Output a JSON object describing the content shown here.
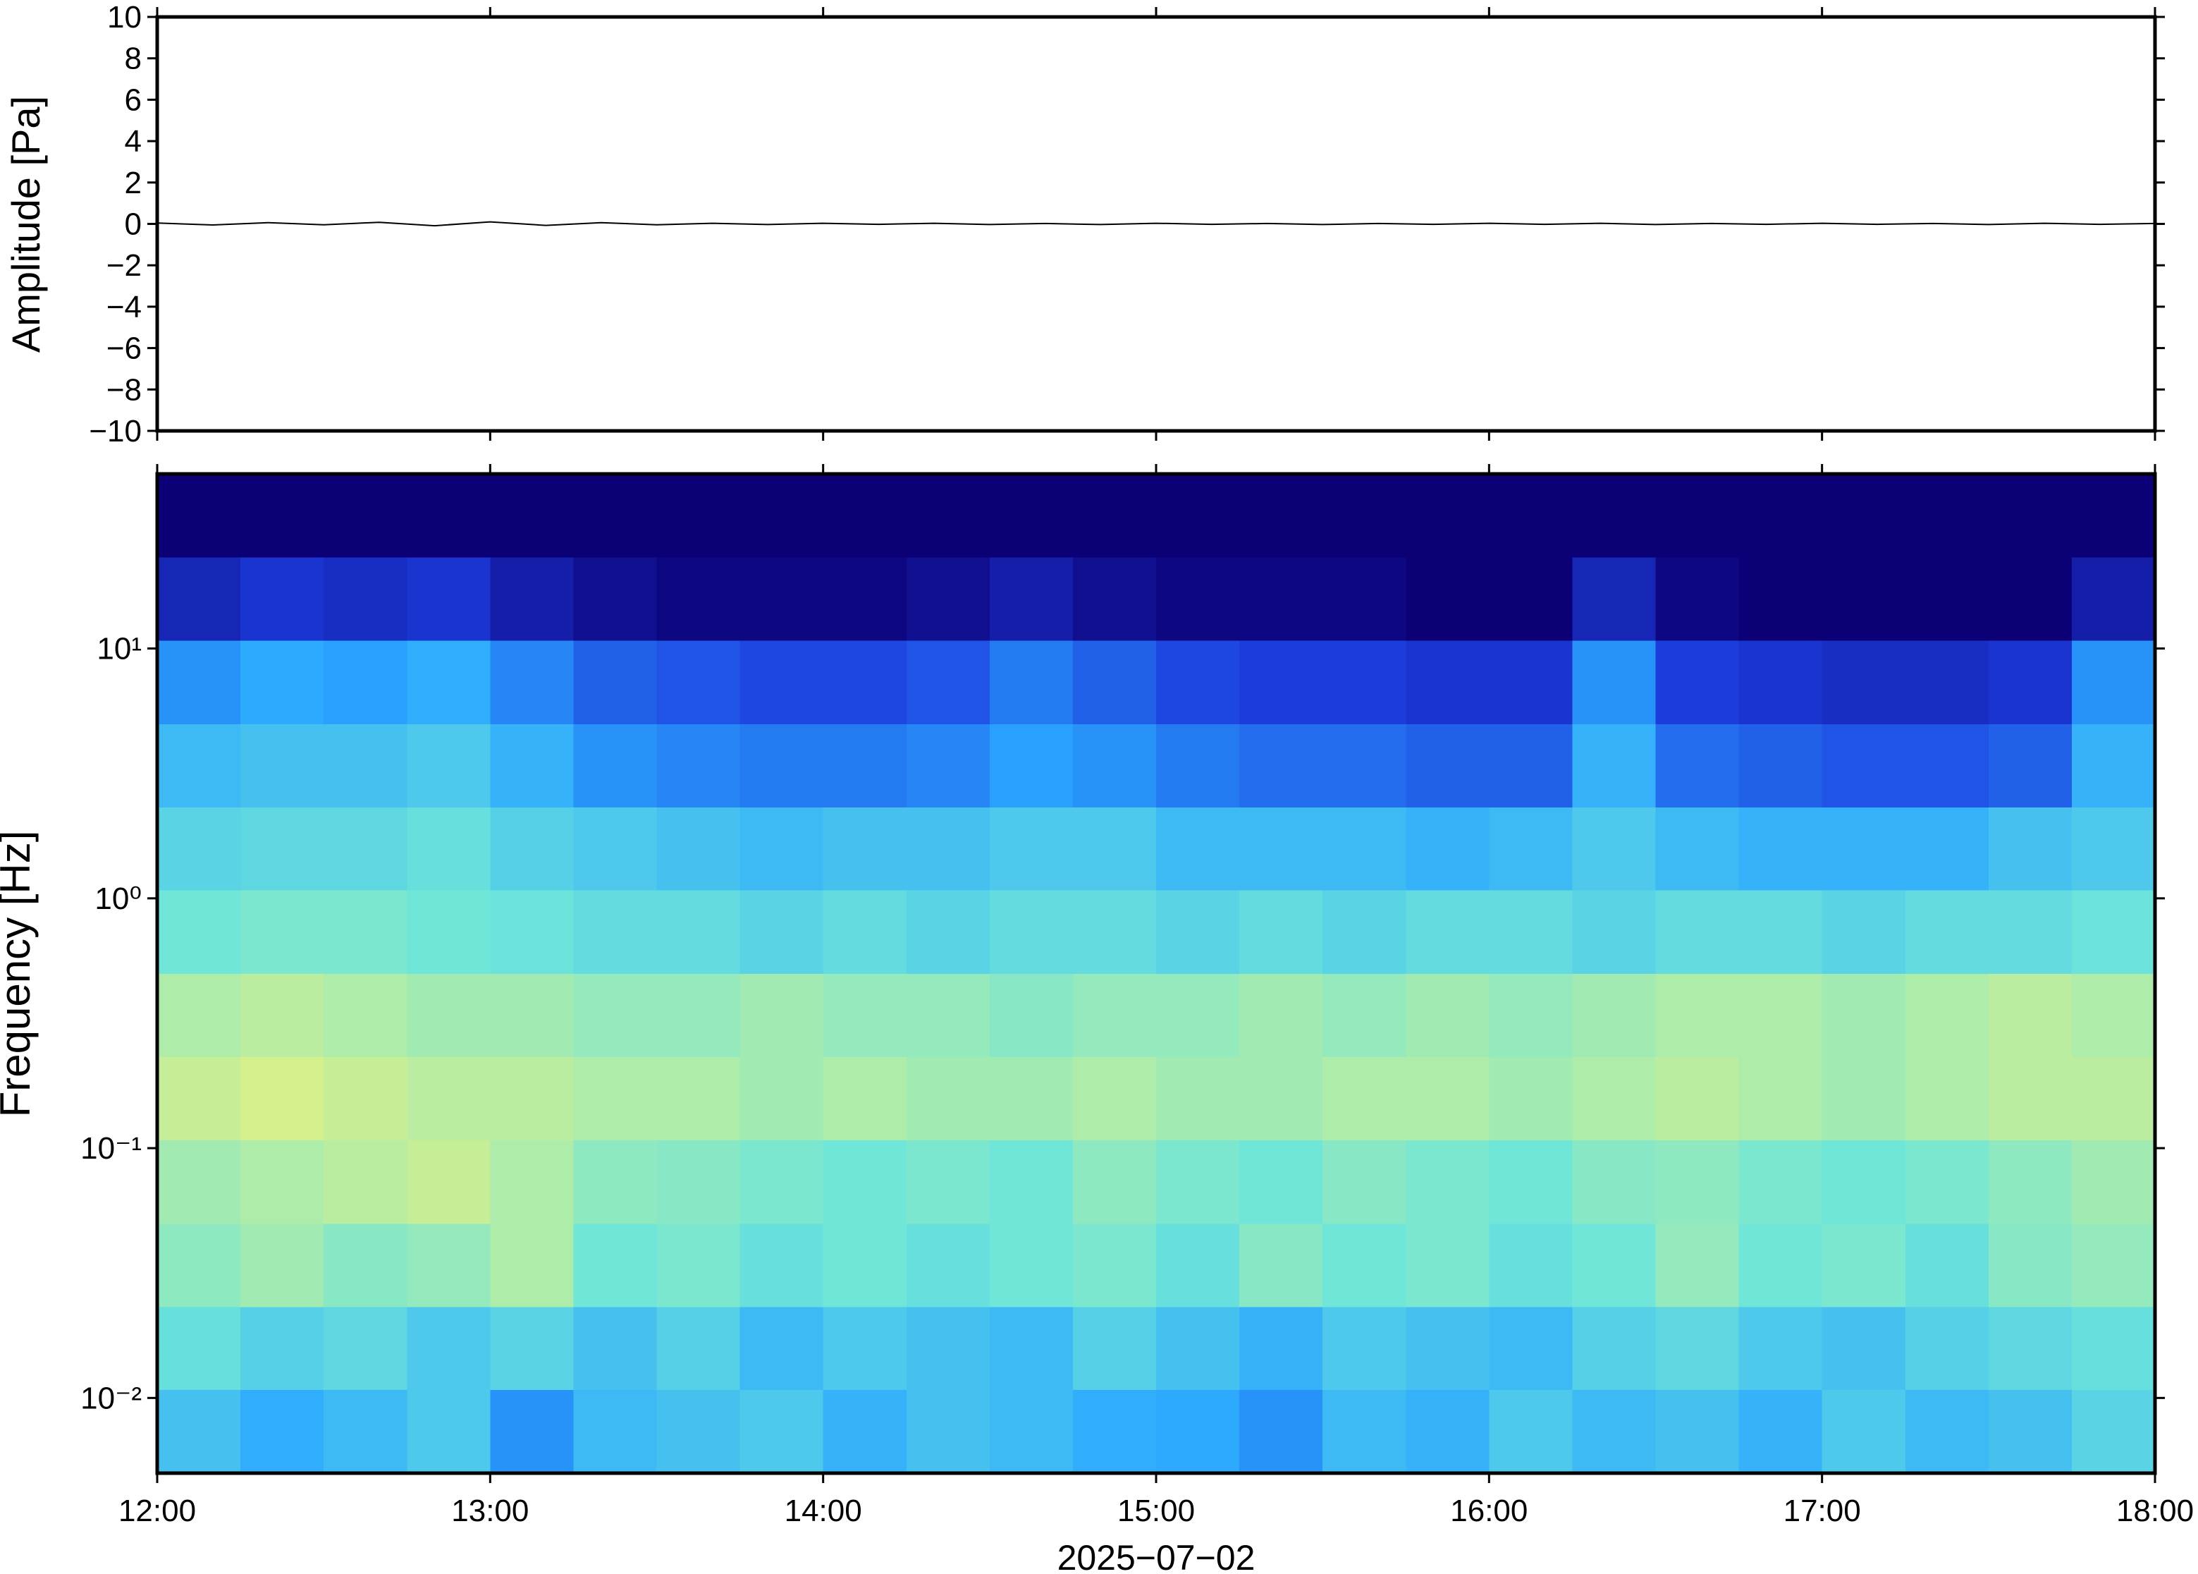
{
  "chart_data": [
    {
      "type": "line",
      "ylabel": "Amplitude [Pa]",
      "color": "#000000",
      "ylim": [
        -10,
        10
      ],
      "yticks": [
        {
          "value": -10,
          "label": "−10"
        },
        {
          "value": -8,
          "label": "−8"
        },
        {
          "value": -6,
          "label": "−6"
        },
        {
          "value": -4,
          "label": "−4"
        },
        {
          "value": -2,
          "label": "−2"
        },
        0,
        2,
        4,
        6,
        8,
        10
      ],
      "xlim": [
        "12:00",
        "18:00"
      ],
      "x": [
        "12:00",
        "12:10",
        "12:20",
        "12:30",
        "12:40",
        "12:50",
        "13:00",
        "13:10",
        "13:20",
        "13:30",
        "13:40",
        "13:50",
        "14:00",
        "14:10",
        "14:20",
        "14:30",
        "14:40",
        "14:50",
        "15:00",
        "15:10",
        "15:20",
        "15:30",
        "15:40",
        "15:50",
        "16:00",
        "16:10",
        "16:20",
        "16:30",
        "16:40",
        "16:50",
        "17:00",
        "17:10",
        "17:20",
        "17:30",
        "17:40",
        "17:50",
        "18:00"
      ],
      "values": [
        0.04,
        -0.05,
        0.06,
        -0.04,
        0.08,
        -0.09,
        0.1,
        -0.07,
        0.06,
        -0.04,
        0.03,
        -0.03,
        0.03,
        -0.02,
        0.03,
        -0.03,
        0.02,
        -0.03,
        0.03,
        -0.02,
        0.02,
        -0.03,
        0.02,
        -0.02,
        0.03,
        -0.02,
        0.03,
        -0.03,
        0.02,
        -0.02,
        0.03,
        -0.02,
        0.02,
        -0.03,
        0.03,
        -0.02,
        0.02
      ]
    },
    {
      "type": "heatmap",
      "ylabel": "Frequency [Hz]",
      "xlabel": "2025−07−02",
      "yscale": "log",
      "ylim": [
        0.005,
        50
      ],
      "yticks": [
        {
          "value": 0.01,
          "label": "10⁻²"
        },
        {
          "value": 0.1,
          "label": "10⁻¹"
        },
        {
          "value": 1,
          "label": "10⁰"
        },
        {
          "value": 10,
          "label": "10¹"
        }
      ],
      "xlim": [
        "12:00",
        "18:00"
      ],
      "xticks": [
        "12:00",
        "13:00",
        "14:00",
        "15:00",
        "16:00",
        "17:00",
        "18:00"
      ],
      "xbins": [
        "12:00",
        "12:15",
        "12:30",
        "12:45",
        "13:00",
        "13:15",
        "13:30",
        "13:45",
        "14:00",
        "14:15",
        "14:30",
        "14:45",
        "15:00",
        "15:15",
        "15:30",
        "15:45",
        "16:00",
        "16:15",
        "16:30",
        "16:45",
        "17:00",
        "17:15",
        "17:30",
        "17:45",
        "18:00"
      ],
      "ybins": [
        0.005,
        0.0108,
        0.0232,
        0.05,
        0.108,
        0.232,
        0.5,
        1.08,
        2.32,
        5,
        10.8,
        23.2,
        50
      ],
      "zlim": [
        0,
        100
      ],
      "colorscale": [
        "#0b0075",
        "#1d3fe0",
        "#2aa8ff",
        "#6fe6d8",
        "#d7f08a",
        "#f5c060",
        "#e8803a"
      ],
      "z": [
        [
          40,
          35,
          38,
          42,
          30,
          38,
          40,
          42,
          36,
          40,
          38,
          35,
          34,
          30,
          38,
          36,
          42,
          38,
          40,
          36,
          42,
          38,
          40,
          45
        ],
        [
          48,
          44,
          46,
          42,
          45,
          40,
          44,
          38,
          42,
          40,
          38,
          44,
          40,
          36,
          42,
          40,
          38,
          44,
          46,
          42,
          40,
          44,
          46,
          48
        ],
        [
          55,
          58,
          54,
          56,
          60,
          50,
          52,
          48,
          50,
          48,
          50,
          52,
          48,
          54,
          50,
          52,
          48,
          50,
          56,
          50,
          52,
          48,
          54,
          56
        ],
        [
          58,
          60,
          62,
          64,
          60,
          55,
          54,
          52,
          50,
          52,
          50,
          55,
          52,
          50,
          54,
          52,
          50,
          54,
          55,
          52,
          50,
          52,
          55,
          58
        ],
        [
          64,
          66,
          64,
          62,
          62,
          60,
          60,
          58,
          60,
          58,
          58,
          60,
          58,
          58,
          60,
          60,
          58,
          60,
          62,
          60,
          58,
          60,
          62,
          62
        ],
        [
          60,
          62,
          60,
          58,
          58,
          56,
          56,
          58,
          56,
          56,
          54,
          56,
          56,
          58,
          56,
          58,
          56,
          58,
          60,
          60,
          58,
          60,
          62,
          60
        ],
        [
          50,
          52,
          52,
          50,
          49,
          47,
          47,
          45,
          47,
          45,
          47,
          47,
          45,
          47,
          45,
          47,
          47,
          45,
          47,
          47,
          45,
          47,
          47,
          49
        ],
        [
          45,
          46,
          46,
          48,
          44,
          42,
          40,
          38,
          40,
          40,
          42,
          42,
          38,
          38,
          38,
          36,
          38,
          42,
          38,
          36,
          36,
          36,
          40,
          42
        ],
        [
          38,
          40,
          40,
          42,
          36,
          30,
          28,
          26,
          26,
          28,
          32,
          30,
          26,
          24,
          24,
          22,
          22,
          36,
          24,
          22,
          20,
          20,
          22,
          36
        ],
        [
          30,
          34,
          32,
          35,
          28,
          22,
          20,
          18,
          18,
          20,
          26,
          22,
          18,
          16,
          16,
          14,
          14,
          30,
          16,
          14,
          12,
          12,
          14,
          30
        ],
        [
          10,
          14,
          12,
          14,
          8,
          4,
          2,
          2,
          2,
          4,
          8,
          4,
          2,
          2,
          2,
          0,
          0,
          10,
          2,
          0,
          0,
          0,
          0,
          8
        ],
        [
          0,
          0,
          0,
          0,
          0,
          0,
          0,
          0,
          0,
          0,
          0,
          0,
          0,
          0,
          0,
          0,
          0,
          0,
          0,
          0,
          0,
          0,
          0,
          0
        ]
      ]
    }
  ]
}
